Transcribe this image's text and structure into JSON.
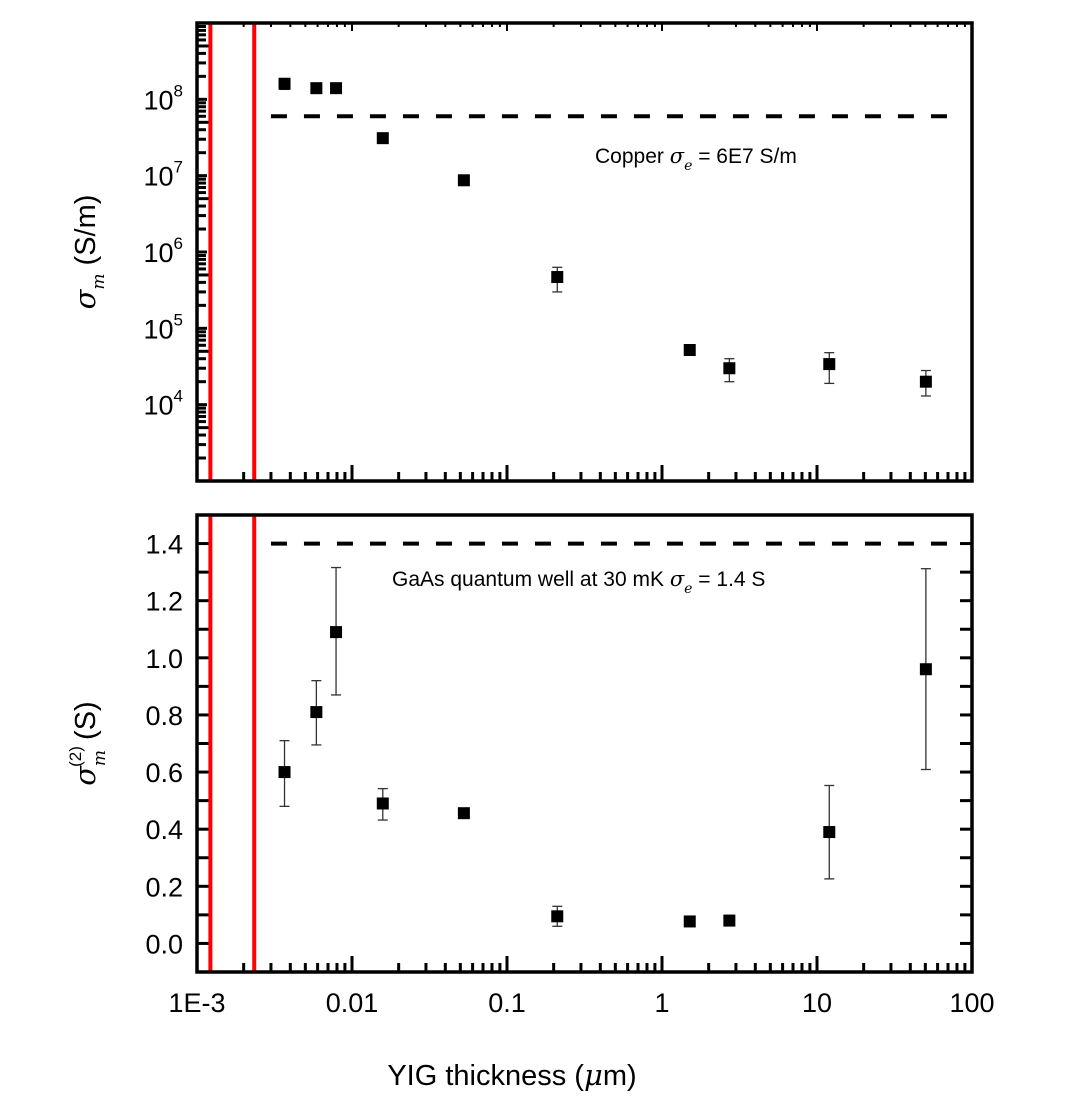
{
  "x_axis": {
    "title_prefix": "YIG thickness (",
    "title_mu": "μ",
    "title_suffix": "m)",
    "scale": "log",
    "xlim": [
      0.001,
      100
    ],
    "tick_values": [
      0.001,
      0.01,
      0.1,
      1,
      10,
      100
    ],
    "tick_labels": [
      "1E-3",
      "0.01",
      "0.1",
      "1",
      "10",
      "100"
    ]
  },
  "colors": {
    "marker": "#000000",
    "reference_line": "#ff0000",
    "dashed": "#000000",
    "errorbar": "#333333"
  },
  "chart_data": [
    {
      "type": "scatter",
      "panel": "top",
      "ylabel_symbol": "σ",
      "ylabel_sub": "m",
      "ylabel_suffix": " (S/m)",
      "yscale": "log",
      "ylim": [
        1000,
        1000000000
      ],
      "ytick_values": [
        10000,
        100000,
        1000000,
        10000000,
        100000000
      ],
      "ytick_labels": [
        {
          "base": "10",
          "exp": "4"
        },
        {
          "base": "10",
          "exp": "5"
        },
        {
          "base": "10",
          "exp": "6"
        },
        {
          "base": "10",
          "exp": "7"
        },
        {
          "base": "10",
          "exp": "8"
        }
      ],
      "x": [
        0.00367,
        0.00589,
        0.00789,
        0.0158,
        0.0527,
        0.211,
        1.51,
        2.72,
        12.0,
        50.4
      ],
      "y": [
        160000000,
        140000000,
        140000000,
        31000000,
        8700000,
        470000,
        52000,
        30000,
        34000,
        20000
      ],
      "error": [
        [
          135000000,
          175000000
        ],
        [
          130000000,
          150000000
        ],
        [
          125000000,
          155000000
        ],
        null,
        null,
        [
          300000,
          630000
        ],
        [
          46000,
          57000
        ],
        [
          20000,
          40000
        ],
        [
          19000,
          48000
        ],
        [
          13000,
          28000
        ]
      ],
      "reference_vlines_x": [
        0.00122,
        0.00234
      ],
      "hline": {
        "y": 60000000,
        "x_range": [
          0.003,
          88
        ]
      },
      "annotation": {
        "prefix": "Copper ",
        "symbol": "σ",
        "sub": "e",
        "suffix": " = 6E7 S/m"
      }
    },
    {
      "type": "scatter",
      "panel": "bottom",
      "ylabel_symbol": "σ",
      "ylabel_sub": "m",
      "ylabel_sup": "(2)",
      "ylabel_suffix": " (S)",
      "yscale": "linear",
      "ylim": [
        -0.1,
        1.5
      ],
      "ytick_values": [
        0.0,
        0.2,
        0.4,
        0.6,
        0.8,
        1.0,
        1.2,
        1.4
      ],
      "ytick_labels": [
        "0.0",
        "0.2",
        "0.4",
        "0.6",
        "0.8",
        "1.0",
        "1.2",
        "1.4"
      ],
      "x": [
        0.00367,
        0.00589,
        0.00789,
        0.0158,
        0.0527,
        0.211,
        1.51,
        2.72,
        12.0,
        50.4
      ],
      "y": [
        0.6,
        0.81,
        1.09,
        0.49,
        0.456,
        0.095,
        0.077,
        0.08,
        0.39,
        0.96
      ],
      "error": [
        [
          0.48,
          0.71
        ],
        [
          0.695,
          0.92
        ],
        [
          0.87,
          1.316
        ],
        [
          0.432,
          0.542
        ],
        [
          0.44,
          0.47
        ],
        [
          0.06,
          0.13
        ],
        null,
        [
          0.062,
          0.098
        ],
        [
          0.226,
          0.553
        ],
        [
          0.609,
          1.312
        ]
      ],
      "reference_vlines_x": [
        0.00122,
        0.00234
      ],
      "hline": {
        "y": 1.4,
        "x_range": [
          0.003,
          80
        ]
      },
      "annotation": {
        "prefix": "GaAs quantum well at 30 mK ",
        "symbol": "σ",
        "sub": "e",
        "suffix": " = 1.4 S"
      }
    }
  ]
}
